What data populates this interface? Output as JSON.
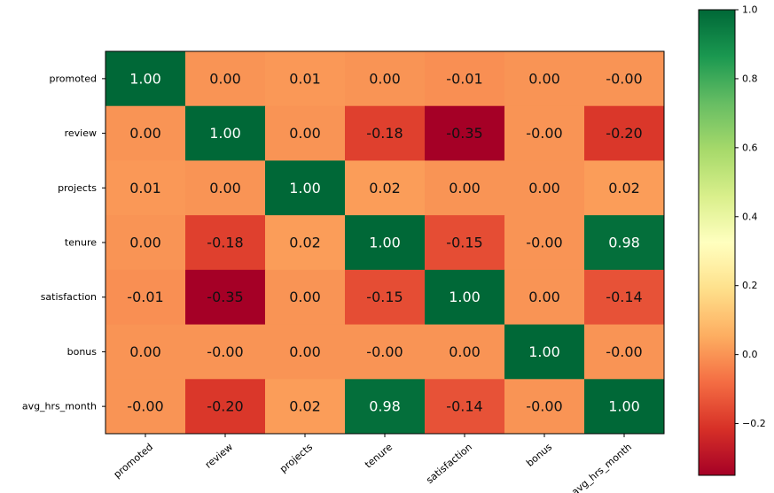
{
  "chart_data": {
    "type": "heatmap",
    "title": "",
    "xlabel": "",
    "ylabel": "",
    "x_categories": [
      "promoted",
      "review",
      "projects",
      "tenure",
      "satisfaction",
      "bonus",
      "avg_hrs_month"
    ],
    "y_categories": [
      "promoted",
      "review",
      "projects",
      "tenure",
      "satisfaction",
      "bonus",
      "avg_hrs_month"
    ],
    "values": [
      [
        1.0,
        0.0,
        0.01,
        0.0,
        -0.01,
        0.0,
        -0.0
      ],
      [
        0.0,
        1.0,
        0.0,
        -0.18,
        -0.35,
        -0.0,
        -0.2
      ],
      [
        0.01,
        0.0,
        1.0,
        0.02,
        0.0,
        0.0,
        0.02
      ],
      [
        0.0,
        -0.18,
        0.02,
        1.0,
        -0.15,
        -0.0,
        0.98
      ],
      [
        -0.01,
        -0.35,
        0.0,
        -0.15,
        1.0,
        0.0,
        -0.14
      ],
      [
        0.0,
        -0.0,
        0.0,
        -0.0,
        0.0,
        1.0,
        -0.0
      ],
      [
        -0.0,
        -0.2,
        0.02,
        0.98,
        -0.14,
        -0.0,
        1.0
      ]
    ],
    "value_labels": [
      [
        "1.00",
        "0.00",
        "0.01",
        "0.00",
        "-0.01",
        "0.00",
        "-0.00"
      ],
      [
        "0.00",
        "1.00",
        "0.00",
        "-0.18",
        "-0.35",
        "-0.00",
        "-0.20"
      ],
      [
        "0.01",
        "0.00",
        "1.00",
        "0.02",
        "0.00",
        "0.00",
        "0.02"
      ],
      [
        "0.00",
        "-0.18",
        "0.02",
        "1.00",
        "-0.15",
        "-0.00",
        "0.98"
      ],
      [
        "-0.01",
        "-0.35",
        "0.00",
        "-0.15",
        "1.00",
        "0.00",
        "-0.14"
      ],
      [
        "0.00",
        "-0.00",
        "0.00",
        "-0.00",
        "0.00",
        "1.00",
        "-0.00"
      ],
      [
        "-0.00",
        "-0.20",
        "0.02",
        "0.98",
        "-0.14",
        "-0.00",
        "1.00"
      ]
    ],
    "colormap": "RdYlGn",
    "colorbar": {
      "vmin": -0.35,
      "vmax": 1.0,
      "ticks": [
        1.0,
        0.8,
        0.6,
        0.4,
        0.2,
        0.0,
        -0.2
      ],
      "tick_labels": [
        "1.0",
        "0.8",
        "0.6",
        "0.4",
        "0.2",
        "0.0",
        "−0.2"
      ]
    },
    "grid": false,
    "legend": "none"
  }
}
